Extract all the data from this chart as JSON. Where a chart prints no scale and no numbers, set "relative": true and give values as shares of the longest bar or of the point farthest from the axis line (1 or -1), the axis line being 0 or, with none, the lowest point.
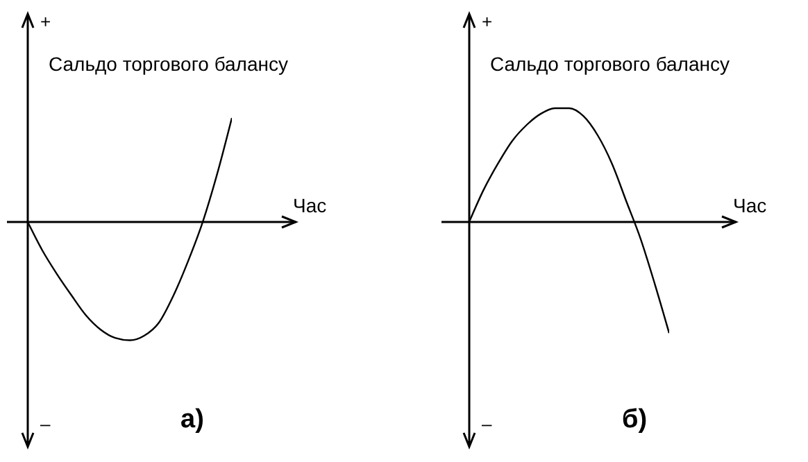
{
  "chart_data": [
    {
      "type": "line",
      "relative": true,
      "ylabel": "Сальдо торгового балансу",
      "xlabel": "Час",
      "marker": "none",
      "color": "#000000",
      "annotations": [
        "+",
        "–",
        "а)"
      ],
      "categories": [
        null,
        null,
        null,
        null,
        null,
        null,
        null,
        null,
        null,
        null,
        null,
        null,
        null,
        null,
        null
      ],
      "values": [
        0,
        -0.24,
        -0.44,
        -0.62,
        -0.79,
        -0.91,
        -0.98,
        -1,
        -0.96,
        -0.85,
        -0.62,
        -0.33,
        0,
        0.41,
        0.88
      ]
    },
    {
      "type": "line",
      "relative": true,
      "ylabel": "Сальдо торгового балансу",
      "xlabel": "Час",
      "marker": "none",
      "color": "#000000",
      "annotations": [
        "+",
        "–",
        "б)"
      ],
      "categories": [
        null,
        null,
        null,
        null,
        null,
        null,
        null,
        null,
        null,
        null,
        null,
        null,
        null,
        null,
        null
      ],
      "values": [
        0,
        0.28,
        0.51,
        0.71,
        0.85,
        0.95,
        1,
        1,
        0.93,
        0.76,
        0.51,
        0.18,
        -0.15,
        -0.55,
        -0.98
      ]
    }
  ]
}
